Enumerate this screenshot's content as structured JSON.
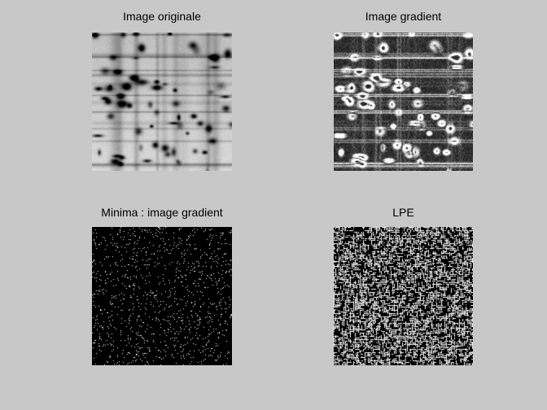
{
  "figure": {
    "background_color": "#c8c8c8",
    "panels": [
      {
        "title": "Image originale",
        "kind": "grayscale-photo"
      },
      {
        "title": "Image gradient",
        "kind": "gradient-magnitude"
      },
      {
        "title": "Minima : image gradient",
        "kind": "binary-minima"
      },
      {
        "title": "LPE",
        "kind": "binary-watershed-lines"
      }
    ]
  }
}
